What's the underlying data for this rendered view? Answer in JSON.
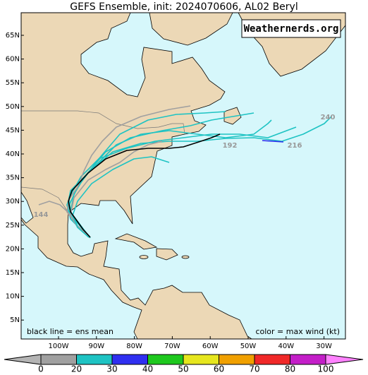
{
  "title": "GEFS Ensemble, init: 2024070606, AL02 Beryl",
  "watermark": "Weathernerds.org",
  "map": {
    "lat_labels": [
      "65N",
      "60N",
      "55N",
      "50N",
      "45N",
      "40N",
      "35N",
      "30N",
      "25N",
      "20N",
      "15N",
      "10N",
      "5N"
    ],
    "lon_labels": [
      "100W",
      "90W",
      "80W",
      "70W",
      "60W",
      "50W",
      "40W",
      "30W"
    ],
    "track_labels": [
      "144",
      "192",
      "216",
      "240"
    ]
  },
  "notes": {
    "left": "black line = ens mean",
    "right": "color = max wind (kt)"
  },
  "colorbar": {
    "labels": [
      0,
      20,
      30,
      40,
      50,
      60,
      70,
      80,
      100
    ],
    "colors": [
      "#b4b4b4",
      "#a0a0a0",
      "#1ec3c3",
      "#2f2ff0",
      "#1ec81e",
      "#e6e61e",
      "#f0a000",
      "#f02828",
      "#c31ec8",
      "#ff82ff"
    ]
  }
}
